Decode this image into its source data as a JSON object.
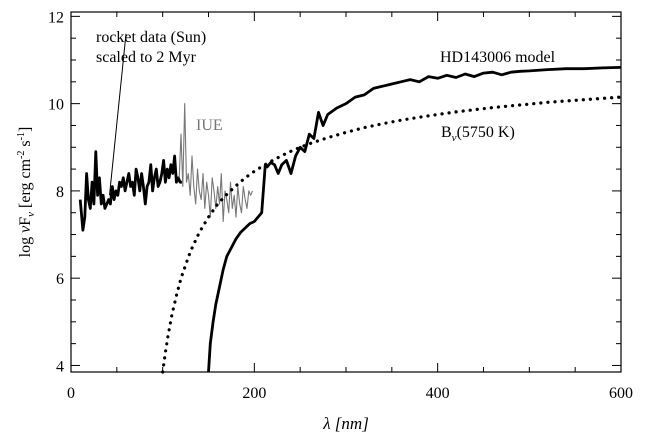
{
  "chart_data": {
    "type": "line",
    "title": "",
    "xlabel": "λ [nm]",
    "ylabel": "log νF_ν [erg cm^-2 s^-1]",
    "ylabel_parts": {
      "prefix": "log ",
      "nu": "ν",
      "F": "F",
      "F_sub": "ν",
      "unit_open": "  [erg cm",
      "exp1": "-2",
      "unit_mid": " s",
      "exp2": "-1",
      "unit_close": "]"
    },
    "xlim": [
      0,
      600
    ],
    "ylim": [
      3.85,
      12.1
    ],
    "xticks": [
      0,
      200,
      400,
      600
    ],
    "yticks": [
      4,
      6,
      8,
      10,
      12
    ],
    "annotations": {
      "rocket_line1": "rocket data (Sun)",
      "rocket_line2": "scaled to 2 Myr",
      "iue": "IUE",
      "model": "HD143006 model",
      "bb_main": "B",
      "bb_sub": "ν",
      "bb_temp": "(5750 K)",
      "leader_from": [
        60,
        11.6
      ],
      "leader_to": [
        42,
        7.9
      ]
    },
    "series": [
      {
        "name": "rocket data (Sun) scaled to 2 Myr",
        "style": "thick-solid",
        "color": "#000000",
        "x": [
          10,
          13,
          15,
          17,
          19,
          21,
          23,
          25,
          27,
          29,
          31,
          33,
          35,
          37,
          39,
          41,
          43,
          45,
          47,
          49,
          51,
          53,
          55,
          57,
          59,
          61,
          63,
          65,
          67,
          69,
          71,
          73,
          75,
          77,
          79,
          81,
          83,
          85,
          87,
          89,
          91,
          93,
          95,
          97,
          99,
          101,
          103,
          105,
          107,
          109,
          111,
          113,
          115,
          117,
          119,
          121
        ],
        "y": [
          7.8,
          7.1,
          7.4,
          8.4,
          7.8,
          7.6,
          8.2,
          7.7,
          8.9,
          7.9,
          8.3,
          7.7,
          7.9,
          7.6,
          7.7,
          7.8,
          7.7,
          8.1,
          7.8,
          8.0,
          7.9,
          8.2,
          8.1,
          8.3,
          8.0,
          8.2,
          8.4,
          8.1,
          8.2,
          7.9,
          8.5,
          8.3,
          8.0,
          8.4,
          8.1,
          7.7,
          8.1,
          8.2,
          8.6,
          8.0,
          8.3,
          8.5,
          8.1,
          8.2,
          8.4,
          8.7,
          8.2,
          8.5,
          8.3,
          8.6,
          8.4,
          8.8,
          8.2,
          8.3,
          8.2,
          8.2
        ]
      },
      {
        "name": "IUE",
        "style": "thin-solid",
        "color": "#777777",
        "x": [
          118,
          120,
          122,
          124,
          126,
          128,
          130,
          132,
          134,
          136,
          138,
          140,
          142,
          144,
          146,
          148,
          150,
          152,
          154,
          156,
          158,
          160,
          162,
          164,
          166,
          168,
          170,
          172,
          174,
          176,
          178,
          180,
          182,
          184,
          186,
          188,
          190,
          192,
          194,
          196,
          198
        ],
        "y": [
          8.3,
          9.3,
          8.1,
          10.0,
          8.2,
          8.4,
          7.9,
          8.8,
          8.1,
          7.7,
          8.5,
          8.0,
          7.8,
          8.4,
          7.6,
          8.2,
          7.9,
          7.4,
          8.3,
          8.0,
          7.6,
          8.1,
          7.7,
          8.4,
          7.3,
          8.0,
          7.8,
          7.5,
          8.2,
          7.6,
          7.9,
          7.4,
          8.1,
          7.7,
          7.5,
          8.1,
          7.8,
          7.6,
          8.0,
          7.9,
          8.0
        ]
      },
      {
        "name": "HD143006 model",
        "style": "thick-solid",
        "color": "#000000",
        "x": [
          150,
          152,
          155,
          158,
          162,
          166,
          170,
          175,
          180,
          185,
          190,
          195,
          200,
          204,
          208,
          212,
          214,
          218,
          222,
          226,
          230,
          235,
          240,
          245,
          250,
          255,
          260,
          265,
          270,
          275,
          280,
          290,
          300,
          310,
          320,
          330,
          340,
          350,
          360,
          370,
          380,
          390,
          400,
          410,
          420,
          430,
          440,
          450,
          460,
          470,
          480,
          490,
          500,
          520,
          540,
          560,
          580,
          600
        ],
        "y": [
          3.85,
          4.5,
          5.0,
          5.4,
          5.8,
          6.2,
          6.5,
          6.7,
          6.9,
          7.05,
          7.15,
          7.25,
          7.3,
          7.4,
          7.5,
          8.6,
          8.55,
          8.65,
          8.6,
          8.4,
          8.6,
          8.7,
          8.4,
          8.8,
          9.0,
          8.9,
          9.3,
          9.2,
          9.8,
          9.5,
          9.75,
          9.9,
          10.0,
          10.15,
          10.2,
          10.35,
          10.4,
          10.45,
          10.5,
          10.55,
          10.5,
          10.62,
          10.58,
          10.65,
          10.6,
          10.68,
          10.62,
          10.7,
          10.72,
          10.66,
          10.72,
          10.74,
          10.75,
          10.78,
          10.8,
          10.8,
          10.82,
          10.83
        ]
      },
      {
        "name": "Bν(5750 K)",
        "style": "dotted",
        "color": "#000000",
        "x": [
          100,
          103,
          106,
          110,
          115,
          120,
          125,
          130,
          140,
          150,
          160,
          170,
          180,
          190,
          200,
          210,
          220,
          230,
          240,
          250,
          260,
          270,
          280,
          300,
          320,
          340,
          360,
          380,
          400,
          420,
          440,
          460,
          480,
          500,
          520,
          540,
          560,
          580,
          600
        ],
        "y": [
          3.85,
          4.3,
          4.7,
          5.15,
          5.6,
          6.0,
          6.3,
          6.6,
          7.05,
          7.4,
          7.7,
          7.92,
          8.12,
          8.3,
          8.45,
          8.58,
          8.7,
          8.81,
          8.91,
          9.0,
          9.08,
          9.15,
          9.22,
          9.34,
          9.45,
          9.54,
          9.62,
          9.69,
          9.75,
          9.81,
          9.86,
          9.91,
          9.95,
          9.99,
          10.03,
          10.06,
          10.09,
          10.12,
          10.15
        ]
      }
    ]
  }
}
